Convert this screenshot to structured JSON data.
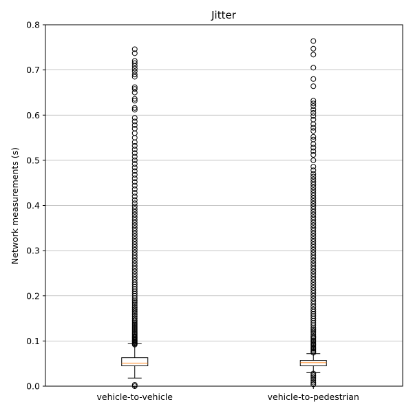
{
  "chart_data": {
    "type": "boxplot",
    "title": "Jitter",
    "xlabel": "",
    "ylabel": "Network measurements (s)",
    "ylim": [
      0,
      0.8
    ],
    "yticks": [
      0.0,
      0.1,
      0.2,
      0.3,
      0.4,
      0.5,
      0.6,
      0.7,
      0.8
    ],
    "ytick_labels": [
      "0.0",
      "0.1",
      "0.2",
      "0.3",
      "0.4",
      "0.5",
      "0.6",
      "0.7",
      "0.8"
    ],
    "grid": "y-major",
    "categories": [
      "vehicle-to-vehicle",
      "vehicle-to-pedestrian"
    ],
    "boxes": [
      {
        "name": "vehicle-to-vehicle",
        "whisker_low": 0.018,
        "q1": 0.045,
        "median": 0.051,
        "q3": 0.063,
        "whisker_high": 0.094,
        "outliers": [
          0.0,
          0.003,
          0.092,
          0.094,
          0.096,
          0.098,
          0.1,
          0.102,
          0.104,
          0.106,
          0.108,
          0.11,
          0.113,
          0.116,
          0.119,
          0.122,
          0.125,
          0.128,
          0.131,
          0.134,
          0.137,
          0.14,
          0.143,
          0.146,
          0.15,
          0.154,
          0.158,
          0.162,
          0.166,
          0.17,
          0.174,
          0.178,
          0.182,
          0.186,
          0.19,
          0.195,
          0.2,
          0.205,
          0.21,
          0.215,
          0.22,
          0.225,
          0.23,
          0.236,
          0.242,
          0.248,
          0.254,
          0.26,
          0.266,
          0.272,
          0.278,
          0.284,
          0.29,
          0.296,
          0.302,
          0.308,
          0.314,
          0.32,
          0.326,
          0.332,
          0.338,
          0.344,
          0.35,
          0.356,
          0.362,
          0.368,
          0.374,
          0.38,
          0.386,
          0.392,
          0.398,
          0.405,
          0.412,
          0.42,
          0.428,
          0.436,
          0.444,
          0.452,
          0.46,
          0.468,
          0.476,
          0.484,
          0.492,
          0.5,
          0.508,
          0.516,
          0.524,
          0.532,
          0.54,
          0.55,
          0.56,
          0.57,
          0.578,
          0.586,
          0.594,
          0.612,
          0.616,
          0.632,
          0.636,
          0.65,
          0.658,
          0.662,
          0.685,
          0.69,
          0.697,
          0.703,
          0.709,
          0.715,
          0.72,
          0.737,
          0.746
        ]
      },
      {
        "name": "vehicle-to-pedestrian",
        "whisker_low": 0.03,
        "q1": 0.045,
        "median": 0.052,
        "q3": 0.057,
        "whisker_high": 0.072,
        "outliers": [
          0.004,
          0.008,
          0.012,
          0.016,
          0.02,
          0.024,
          0.028,
          0.074,
          0.077,
          0.08,
          0.083,
          0.086,
          0.089,
          0.092,
          0.095,
          0.098,
          0.101,
          0.104,
          0.107,
          0.11,
          0.114,
          0.118,
          0.122,
          0.126,
          0.13,
          0.135,
          0.14,
          0.145,
          0.15,
          0.155,
          0.16,
          0.165,
          0.17,
          0.176,
          0.182,
          0.188,
          0.194,
          0.2,
          0.206,
          0.212,
          0.218,
          0.224,
          0.23,
          0.236,
          0.242,
          0.248,
          0.254,
          0.26,
          0.266,
          0.272,
          0.278,
          0.284,
          0.29,
          0.296,
          0.302,
          0.308,
          0.314,
          0.32,
          0.326,
          0.332,
          0.338,
          0.344,
          0.35,
          0.356,
          0.362,
          0.368,
          0.374,
          0.38,
          0.386,
          0.392,
          0.398,
          0.404,
          0.41,
          0.416,
          0.422,
          0.428,
          0.434,
          0.44,
          0.446,
          0.452,
          0.458,
          0.464,
          0.47,
          0.478,
          0.486,
          0.5,
          0.512,
          0.52,
          0.528,
          0.536,
          0.546,
          0.552,
          0.565,
          0.572,
          0.58,
          0.59,
          0.598,
          0.605,
          0.612,
          0.62,
          0.626,
          0.632,
          0.664,
          0.68,
          0.705,
          0.734,
          0.747,
          0.764
        ]
      }
    ],
    "colors": {
      "box": "#000000",
      "median": "#ff7f0e",
      "grid": "#b0b0b0",
      "outlier_edge": "#000000"
    }
  }
}
